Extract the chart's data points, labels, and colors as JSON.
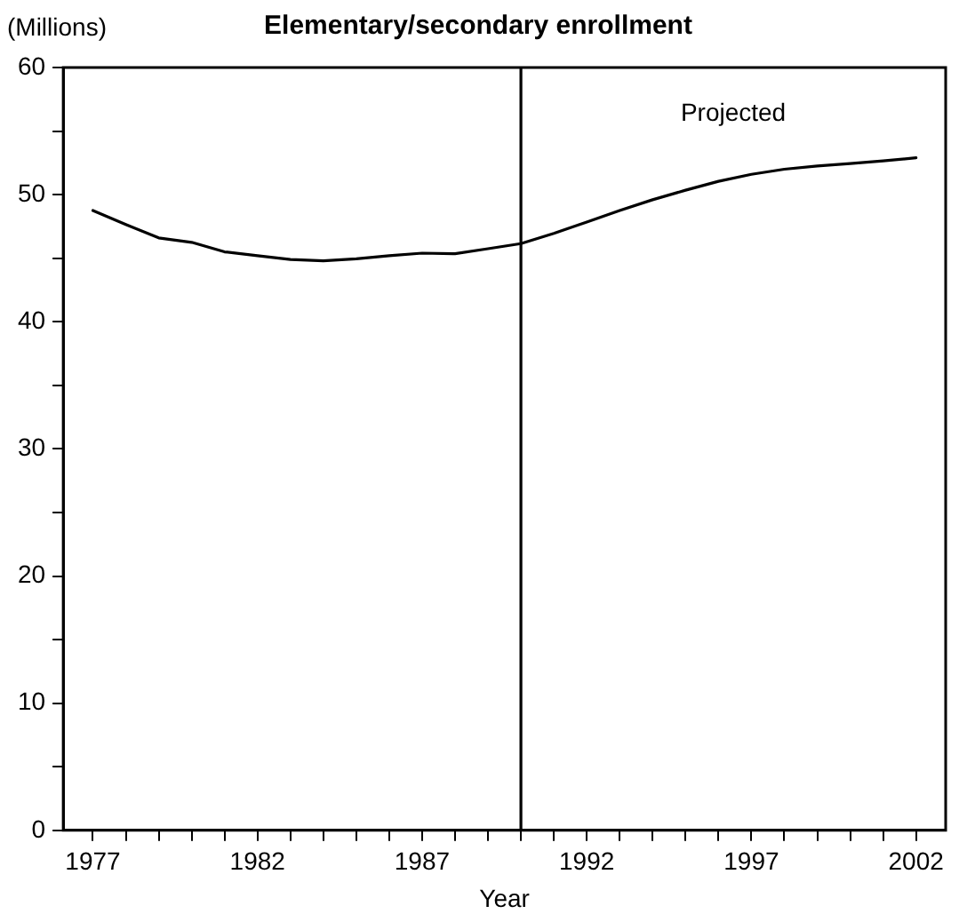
{
  "chart_data": {
    "type": "line",
    "title": "Elementary/secondary enrollment",
    "xlabel": "Year",
    "ylabel": "(Millions)",
    "x": [
      1977,
      1978,
      1979,
      1980,
      1981,
      1982,
      1983,
      1984,
      1985,
      1986,
      1987,
      1988,
      1989,
      1990,
      1991,
      1992,
      1993,
      1994,
      1995,
      1996,
      1997,
      1998,
      1999,
      2000,
      2001,
      2002
    ],
    "series": [
      {
        "color": "#000000",
        "values": [
          48.75,
          47.65,
          46.6,
          46.25,
          45.5,
          45.2,
          44.9,
          44.8,
          44.95,
          45.2,
          45.4,
          45.35,
          45.75,
          46.15,
          46.95,
          47.85,
          48.75,
          49.6,
          50.35,
          51.05,
          51.6,
          52,
          52.25,
          52.45,
          52.65,
          52.9
        ]
      }
    ],
    "xlim": [
      1976.1,
      2002.9
    ],
    "xticks": [
      1977,
      {
        "value": 1978,
        "label": null
      },
      {
        "value": 1979,
        "label": null
      },
      {
        "value": 1980,
        "label": null
      },
      {
        "value": 1981,
        "label": null
      },
      1982,
      {
        "value": 1983,
        "label": null
      },
      {
        "value": 1984,
        "label": null
      },
      {
        "value": 1985,
        "label": null
      },
      {
        "value": 1986,
        "label": null
      },
      1987,
      {
        "value": 1988,
        "label": null
      },
      {
        "value": 1989,
        "label": null
      },
      {
        "value": 1990,
        "label": null
      },
      {
        "value": 1991,
        "label": null
      },
      1992,
      {
        "value": 1993,
        "label": null
      },
      {
        "value": 1994,
        "label": null
      },
      {
        "value": 1995,
        "label": null
      },
      {
        "value": 1996,
        "label": null
      },
      1997,
      {
        "value": 1998,
        "label": null
      },
      {
        "value": 1999,
        "label": null
      },
      {
        "value": 2000,
        "label": null
      },
      {
        "value": 2001,
        "label": null
      },
      2002
    ],
    "ylim": [
      0,
      60
    ],
    "yticks": [
      0,
      {
        "value": 5,
        "label": null
      },
      10,
      {
        "value": 15,
        "label": null
      },
      20,
      {
        "value": 25,
        "label": null
      },
      30,
      {
        "value": 35,
        "label": null
      },
      40,
      {
        "value": 45,
        "label": null
      },
      50,
      {
        "value": 55,
        "label": null
      },
      60
    ],
    "ref_lines": [
      {
        "axis": "x",
        "value": 1990,
        "label": "Projected",
        "color": "#000000",
        "line_style": "solid"
      }
    ],
    "grid": false,
    "legend": false,
    "marker": "none",
    "line_style": "solid"
  }
}
